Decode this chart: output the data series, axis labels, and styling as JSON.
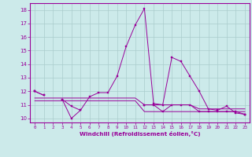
{
  "xlabel": "Windchill (Refroidissement éolien,°C)",
  "background_color": "#cceaea",
  "grid_color": "#aacccc",
  "line_color": "#990099",
  "x": [
    0,
    1,
    2,
    3,
    4,
    5,
    6,
    7,
    8,
    9,
    10,
    11,
    12,
    13,
    14,
    15,
    16,
    17,
    18,
    19,
    20,
    21,
    22,
    23
  ],
  "series1": [
    12.0,
    11.7,
    null,
    11.4,
    10.9,
    10.6,
    11.6,
    11.9,
    11.9,
    13.1,
    15.3,
    16.9,
    18.1,
    11.1,
    11.0,
    14.5,
    14.2,
    13.1,
    12.0,
    10.7,
    10.6,
    10.9,
    10.4,
    10.3
  ],
  "series2": [
    12.0,
    11.7,
    null,
    11.4,
    10.0,
    10.6,
    null,
    null,
    null,
    null,
    null,
    null,
    11.0,
    11.0,
    10.5,
    11.0,
    11.0,
    11.0,
    10.5,
    10.5,
    10.5,
    10.5,
    10.5,
    10.3
  ],
  "series3": [
    12.0,
    null,
    null,
    null,
    null,
    null,
    null,
    null,
    null,
    null,
    null,
    null,
    11.0,
    null,
    null,
    null,
    null,
    null,
    null,
    null,
    null,
    null,
    null,
    10.3
  ],
  "flat1": [
    11.3,
    11.3,
    11.3,
    11.3,
    11.3,
    11.3,
    11.3,
    11.3,
    11.3,
    11.3,
    11.3,
    11.3,
    10.5,
    10.5,
    10.5,
    10.5,
    10.5,
    10.5,
    10.5,
    10.5,
    10.5,
    10.5,
    10.5,
    10.5
  ],
  "flat2": [
    11.5,
    11.5,
    11.5,
    11.5,
    11.5,
    11.5,
    11.5,
    11.5,
    11.5,
    11.5,
    11.5,
    11.5,
    11.0,
    11.0,
    11.0,
    11.0,
    11.0,
    11.0,
    10.7,
    10.7,
    10.7,
    10.7,
    10.7,
    10.7
  ],
  "ylim": [
    9.7,
    18.5
  ],
  "yticks": [
    10,
    11,
    12,
    13,
    14,
    15,
    16,
    17,
    18
  ],
  "xlim": [
    -0.5,
    23.5
  ]
}
